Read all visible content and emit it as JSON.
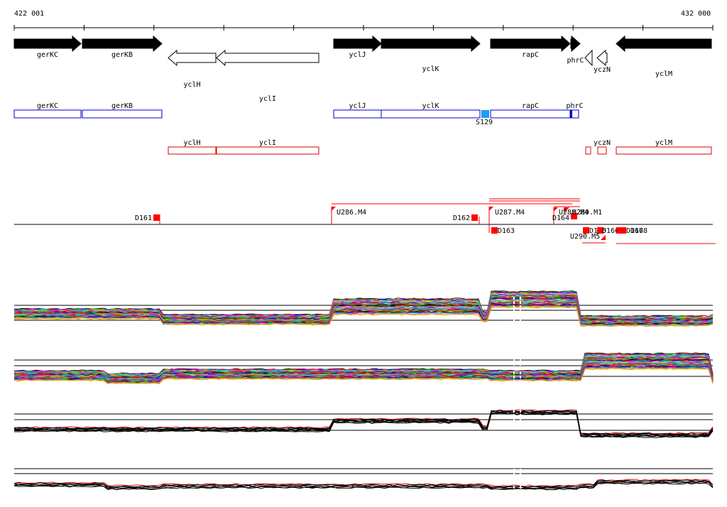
{
  "coords": {
    "start": "422 001",
    "end": "432 000"
  },
  "genes_strand": [
    {
      "label": "gerKC",
      "x1": 20,
      "x2": 114,
      "dir": "right",
      "fill": "black"
    },
    {
      "label": "gerKB",
      "x1": 116,
      "x2": 228,
      "dir": "right",
      "fill": "black"
    },
    {
      "label": "yclH",
      "x1": 237,
      "x2": 304,
      "dir": "left",
      "fill": "white"
    },
    {
      "label": "yclI",
      "x1": 305,
      "x2": 449,
      "dir": "left",
      "fill": "white"
    },
    {
      "label": "yclJ",
      "x1": 470,
      "x2": 537,
      "dir": "right",
      "fill": "black"
    },
    {
      "label": "yclK",
      "x1": 537,
      "x2": 676,
      "dir": "right",
      "fill": "black"
    },
    {
      "label": "rapC",
      "x1": 691,
      "x2": 803,
      "dir": "right",
      "fill": "black"
    },
    {
      "label": "phrC",
      "x1": 804,
      "x2": 817,
      "dir": "right",
      "fill": "black"
    },
    {
      "label": "",
      "x1": 824,
      "x2": 834,
      "dir": "left",
      "fill": "white"
    },
    {
      "label": "yczN",
      "x1": 841,
      "x2": 855,
      "dir": "left",
      "fill": "white"
    },
    {
      "label": "yclM",
      "x1": 868,
      "x2": 1002,
      "dir": "left",
      "fill": "black"
    }
  ],
  "blue_boxes": [
    {
      "label": "gerKC",
      "x1": 20,
      "x2": 114
    },
    {
      "label": "gerKB",
      "x1": 116,
      "x2": 228
    },
    {
      "label": "yclJ",
      "x1": 470,
      "x2": 537
    },
    {
      "label": "yclK",
      "x1": 537,
      "x2": 676
    },
    {
      "label": "rapC",
      "x1": 691,
      "x2": 803
    },
    {
      "label": "phrC",
      "x1": 804,
      "x2": 815
    }
  ],
  "blue_marker": {
    "label": "S129"
  },
  "red_boxes": [
    {
      "label": "yclH",
      "x1": 237,
      "x2": 304
    },
    {
      "label": "yclI",
      "x1": 305,
      "x2": 449
    },
    {
      "label": "",
      "x1": 825,
      "x2": 832
    },
    {
      "label": "yczN",
      "x1": 842,
      "x2": 854
    },
    {
      "label": "yclM",
      "x1": 868,
      "x2": 1002
    }
  ],
  "features_above": [
    "D161",
    "U286.M4",
    "D162",
    "U287.M4",
    "D164",
    "U288.M4",
    "U289.M1"
  ],
  "features_below": [
    "D163",
    "U290.M5",
    "D165",
    "D166",
    "D167",
    "D168"
  ],
  "tracks": [
    {
      "name": "expression-panel-1",
      "series_count": 40
    },
    {
      "name": "expression-panel-2",
      "series_count": 40
    },
    {
      "name": "expression-panel-3",
      "series_count": 8
    },
    {
      "name": "expression-panel-4",
      "series_count": 6
    }
  ],
  "colors": {
    "gene_fill": "#000000",
    "box_blue": "#0000cc",
    "box_red": "#dd0000",
    "marker_blue": "#1e9bff",
    "feature_red": "#ff0000"
  }
}
